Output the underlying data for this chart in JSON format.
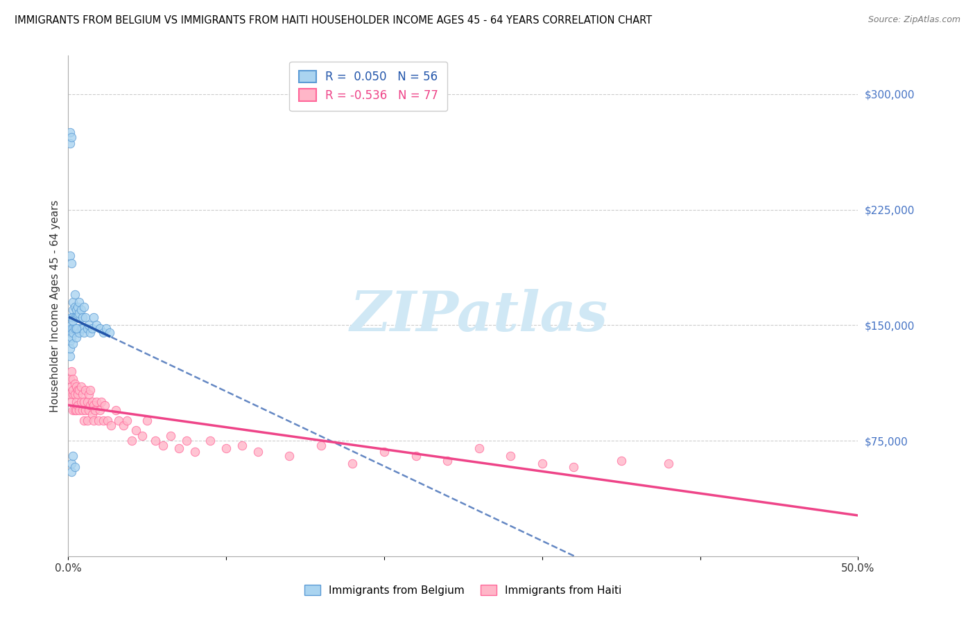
{
  "title": "IMMIGRANTS FROM BELGIUM VS IMMIGRANTS FROM HAITI HOUSEHOLDER INCOME AGES 45 - 64 YEARS CORRELATION CHART",
  "source": "Source: ZipAtlas.com",
  "ylabel": "Householder Income Ages 45 - 64 years",
  "xlim": [
    0.0,
    0.5
  ],
  "ylim": [
    0,
    325000
  ],
  "yticks_right": [
    75000,
    150000,
    225000,
    300000
  ],
  "yticklabels_right": [
    "$75,000",
    "$150,000",
    "$225,000",
    "$300,000"
  ],
  "grid_color": "#cccccc",
  "background_color": "#ffffff",
  "belgium_color": "#aad4f0",
  "haiti_color": "#ffb6c8",
  "belgium_edge_color": "#5b9bd5",
  "haiti_edge_color": "#ff6699",
  "belgium_trend_color": "#2255aa",
  "haiti_trend_color": "#ee4488",
  "belgium_R": 0.05,
  "belgium_N": 56,
  "haiti_R": -0.536,
  "haiti_N": 77,
  "watermark_color": "#d0e8f5",
  "belgium_x": [
    0.001,
    0.001,
    0.001,
    0.002,
    0.002,
    0.002,
    0.002,
    0.002,
    0.003,
    0.003,
    0.003,
    0.003,
    0.003,
    0.003,
    0.004,
    0.004,
    0.004,
    0.004,
    0.005,
    0.005,
    0.005,
    0.005,
    0.006,
    0.006,
    0.006,
    0.007,
    0.007,
    0.007,
    0.008,
    0.008,
    0.009,
    0.009,
    0.01,
    0.01,
    0.011,
    0.012,
    0.013,
    0.014,
    0.015,
    0.016,
    0.018,
    0.02,
    0.022,
    0.024,
    0.026,
    0.002,
    0.002,
    0.003,
    0.004,
    0.001,
    0.001,
    0.002,
    0.001,
    0.002,
    0.003,
    0.005
  ],
  "belgium_y": [
    130000,
    140000,
    135000,
    145000,
    150000,
    155000,
    148000,
    142000,
    160000,
    165000,
    155000,
    148000,
    138000,
    145000,
    162000,
    170000,
    155000,
    148000,
    160000,
    155000,
    148000,
    142000,
    155000,
    162000,
    148000,
    158000,
    165000,
    145000,
    160000,
    148000,
    155000,
    148000,
    162000,
    145000,
    155000,
    148000,
    150000,
    145000,
    148000,
    155000,
    150000,
    148000,
    145000,
    148000,
    145000,
    55000,
    60000,
    65000,
    58000,
    275000,
    268000,
    272000,
    195000,
    190000,
    153000,
    148000
  ],
  "haiti_x": [
    0.001,
    0.001,
    0.002,
    0.002,
    0.002,
    0.003,
    0.003,
    0.003,
    0.003,
    0.004,
    0.004,
    0.004,
    0.005,
    0.005,
    0.005,
    0.006,
    0.006,
    0.006,
    0.007,
    0.007,
    0.008,
    0.008,
    0.009,
    0.009,
    0.01,
    0.01,
    0.011,
    0.011,
    0.012,
    0.012,
    0.013,
    0.013,
    0.014,
    0.014,
    0.015,
    0.015,
    0.016,
    0.016,
    0.017,
    0.018,
    0.019,
    0.02,
    0.021,
    0.022,
    0.023,
    0.025,
    0.027,
    0.03,
    0.032,
    0.035,
    0.037,
    0.04,
    0.043,
    0.047,
    0.05,
    0.055,
    0.06,
    0.065,
    0.07,
    0.075,
    0.08,
    0.09,
    0.1,
    0.11,
    0.12,
    0.14,
    0.16,
    0.18,
    0.2,
    0.22,
    0.24,
    0.26,
    0.28,
    0.3,
    0.32,
    0.35,
    0.38
  ],
  "haiti_y": [
    105000,
    115000,
    110000,
    100000,
    120000,
    105000,
    95000,
    115000,
    108000,
    112000,
    95000,
    105000,
    100000,
    110000,
    95000,
    108000,
    98000,
    105000,
    95000,
    108000,
    100000,
    110000,
    95000,
    105000,
    100000,
    88000,
    108000,
    95000,
    100000,
    88000,
    105000,
    95000,
    98000,
    108000,
    92000,
    100000,
    88000,
    98000,
    95000,
    100000,
    88000,
    95000,
    100000,
    88000,
    98000,
    88000,
    85000,
    95000,
    88000,
    85000,
    88000,
    75000,
    82000,
    78000,
    88000,
    75000,
    72000,
    78000,
    70000,
    75000,
    68000,
    75000,
    70000,
    72000,
    68000,
    65000,
    72000,
    60000,
    68000,
    65000,
    62000,
    70000,
    65000,
    60000,
    58000,
    62000,
    60000
  ]
}
